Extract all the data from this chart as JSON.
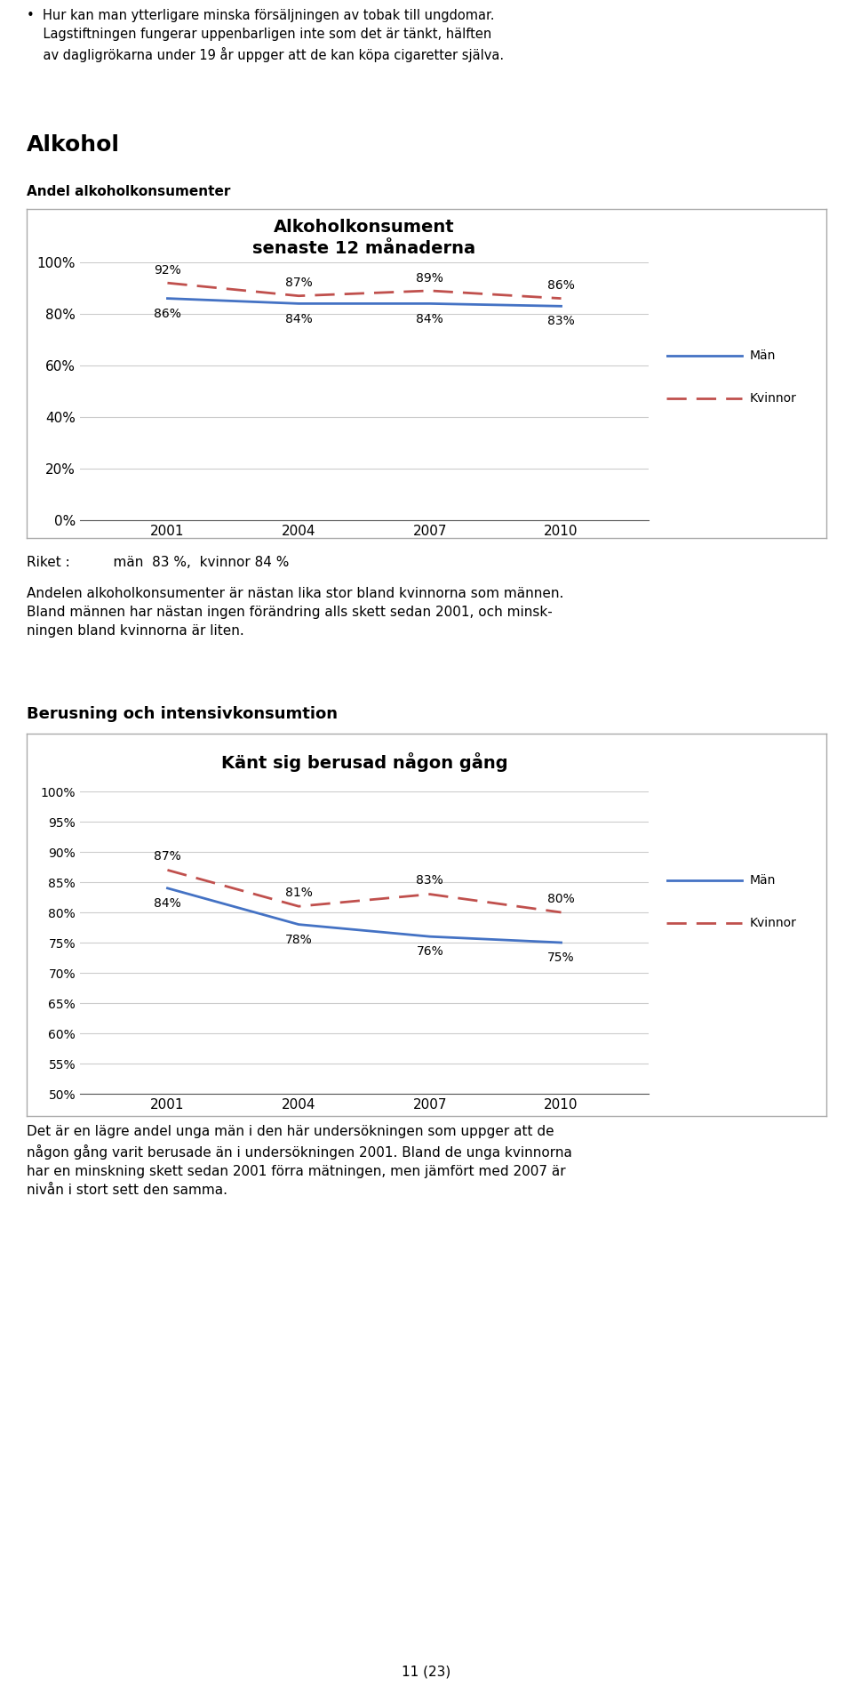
{
  "page_top_text_line1": "Hur kan man ytterligare minska försäljningen av tobak till ungdomar.",
  "page_top_text_line2": "Lagstiftningen fungerar uppenbarligen inte som det är tänkt, hälften",
  "page_top_text_line3": "av dagligrökarna under 19 år uppger att de kan köpa cigaretter själva.",
  "section1_title": "Alkohol",
  "section1_subtitle": "Andel alkoholkonsumenter",
  "chart1_title": "Alkoholkonsument\nsenaste 12 månaderna",
  "chart1_years": [
    2001,
    2004,
    2007,
    2010
  ],
  "chart1_man": [
    86,
    84,
    84,
    83
  ],
  "chart1_kvinna": [
    92,
    87,
    89,
    86
  ],
  "chart1_ylim": [
    0,
    100
  ],
  "chart1_yticks": [
    0,
    20,
    40,
    60,
    80,
    100
  ],
  "chart1_yticklabels": [
    "0%",
    "20%",
    "40%",
    "60%",
    "80%",
    "100%"
  ],
  "chart1_man_labels": [
    "86%",
    "84%",
    "84%",
    "83%"
  ],
  "chart1_kvinna_labels": [
    "92%",
    "87%",
    "89%",
    "86%"
  ],
  "riket_text": "Riket :          män  83 %,  kvinnor 84 %",
  "section1_body1_line1": "Andelen alkoholkonsumenter är nästan lika stor bland kvinnorna som männen.",
  "section1_body1_line2": "Bland männen har nästan ingen förändring alls skett sedan 2001, och minsk-",
  "section1_body1_line3": "ningen bland kvinnorna är liten.",
  "section2_title": "Berusning och intensivkonsumtion",
  "chart2_title": "Känt sig berusad någon gång",
  "chart2_years": [
    2001,
    2004,
    2007,
    2010
  ],
  "chart2_man": [
    84,
    78,
    76,
    75
  ],
  "chart2_kvinna": [
    87,
    81,
    83,
    80
  ],
  "chart2_ylim": [
    50,
    100
  ],
  "chart2_yticks": [
    50,
    55,
    60,
    65,
    70,
    75,
    80,
    85,
    90,
    95,
    100
  ],
  "chart2_yticklabels": [
    "50%",
    "55%",
    "60%",
    "65%",
    "70%",
    "75%",
    "80%",
    "85%",
    "90%",
    "95%",
    "100%"
  ],
  "chart2_man_labels": [
    "84%",
    "78%",
    "76%",
    "75%"
  ],
  "chart2_kvinna_labels": [
    "87%",
    "81%",
    "83%",
    "80%"
  ],
  "section2_body_line1": "Det är en lägre andel unga män i den här undersökningen som uppger att de",
  "section2_body_line2": "någon gång varit berusade än i undersökningen 2001. Bland de unga kvinnorna",
  "section2_body_line3": "har en minskning skett sedan 2001 förra mätningen, men jämfört med 2007 är",
  "section2_body_line4": "nivån i stort sett den samma.",
  "footer": "11 (23)",
  "man_color": "#4472C4",
  "kvinna_color": "#C0504D",
  "bg_color": "#FFFFFF"
}
